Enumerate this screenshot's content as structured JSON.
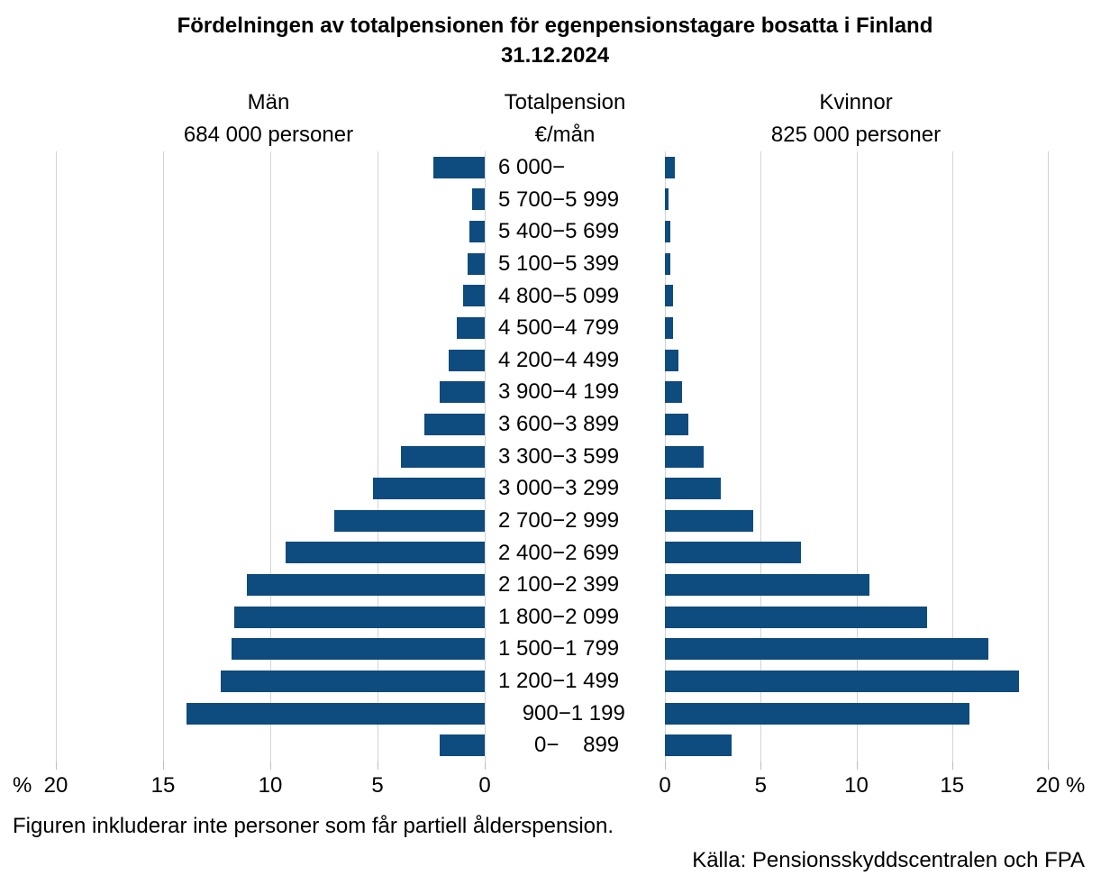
{
  "title": {
    "line1": "Fördelningen av totalpensionen för egenpensionstagare bosatta i Finland",
    "line2": "31.12.2024"
  },
  "panels": {
    "left": {
      "header": "Män",
      "subheader": "684 000 personer"
    },
    "center": {
      "header": "Totalpension",
      "subheader": "€/mån"
    },
    "right": {
      "header": "Kvinnor",
      "subheader": "825 000 personer"
    }
  },
  "chart_data": {
    "type": "bar",
    "orientation": "horizontal-pyramid",
    "title": "Fördelningen av totalpensionen för egenpensionstagare bosatta i Finland 31.12.2024",
    "value_unit": "% av personer",
    "category_unit": "Totalpension €/mån",
    "categories": [
      "6 000−",
      "5 700−5 999",
      "5 400−5 699",
      "5 100−5 399",
      "4 800−5 099",
      "4 500−4 799",
      "4 200−4 499",
      "3 900−4 199",
      "3 600−3 899",
      "3 300−3 599",
      "3 000−3 299",
      "2 700−2 999",
      "2 400−2 699",
      "2 100−2 399",
      "1 800−2 099",
      "1 500−1 799",
      "1 200−1 499",
      "  900−1 199",
      "   0−  899"
    ],
    "series": [
      {
        "name": "Män",
        "values": [
          2.4,
          0.6,
          0.7,
          0.8,
          1.0,
          1.3,
          1.7,
          2.1,
          2.8,
          3.9,
          5.2,
          7.0,
          9.3,
          11.1,
          11.7,
          11.8,
          12.3,
          13.9,
          2.1
        ]
      },
      {
        "name": "Kvinnor",
        "values": [
          0.5,
          0.2,
          0.3,
          0.3,
          0.4,
          0.4,
          0.7,
          0.9,
          1.2,
          2.0,
          2.9,
          4.6,
          7.1,
          10.7,
          13.7,
          16.9,
          18.5,
          15.9,
          3.5
        ]
      }
    ],
    "axis": {
      "range": [
        0,
        20
      ],
      "left_ticks": [
        "20",
        "15",
        "10",
        "5",
        "0"
      ],
      "right_ticks": [
        "0",
        "5",
        "10",
        "15",
        "20"
      ],
      "percent_symbol": "%",
      "grid": true
    }
  },
  "colors": {
    "bar": "#0e4b7e",
    "gridline": "#d3d3d3",
    "tick": "#bfbfbf",
    "text": "#000000"
  },
  "footnote": "Figuren inkluderar inte personer som får partiell ålderspension.",
  "source": "Källa: Pensionsskyddscentralen och FPA"
}
